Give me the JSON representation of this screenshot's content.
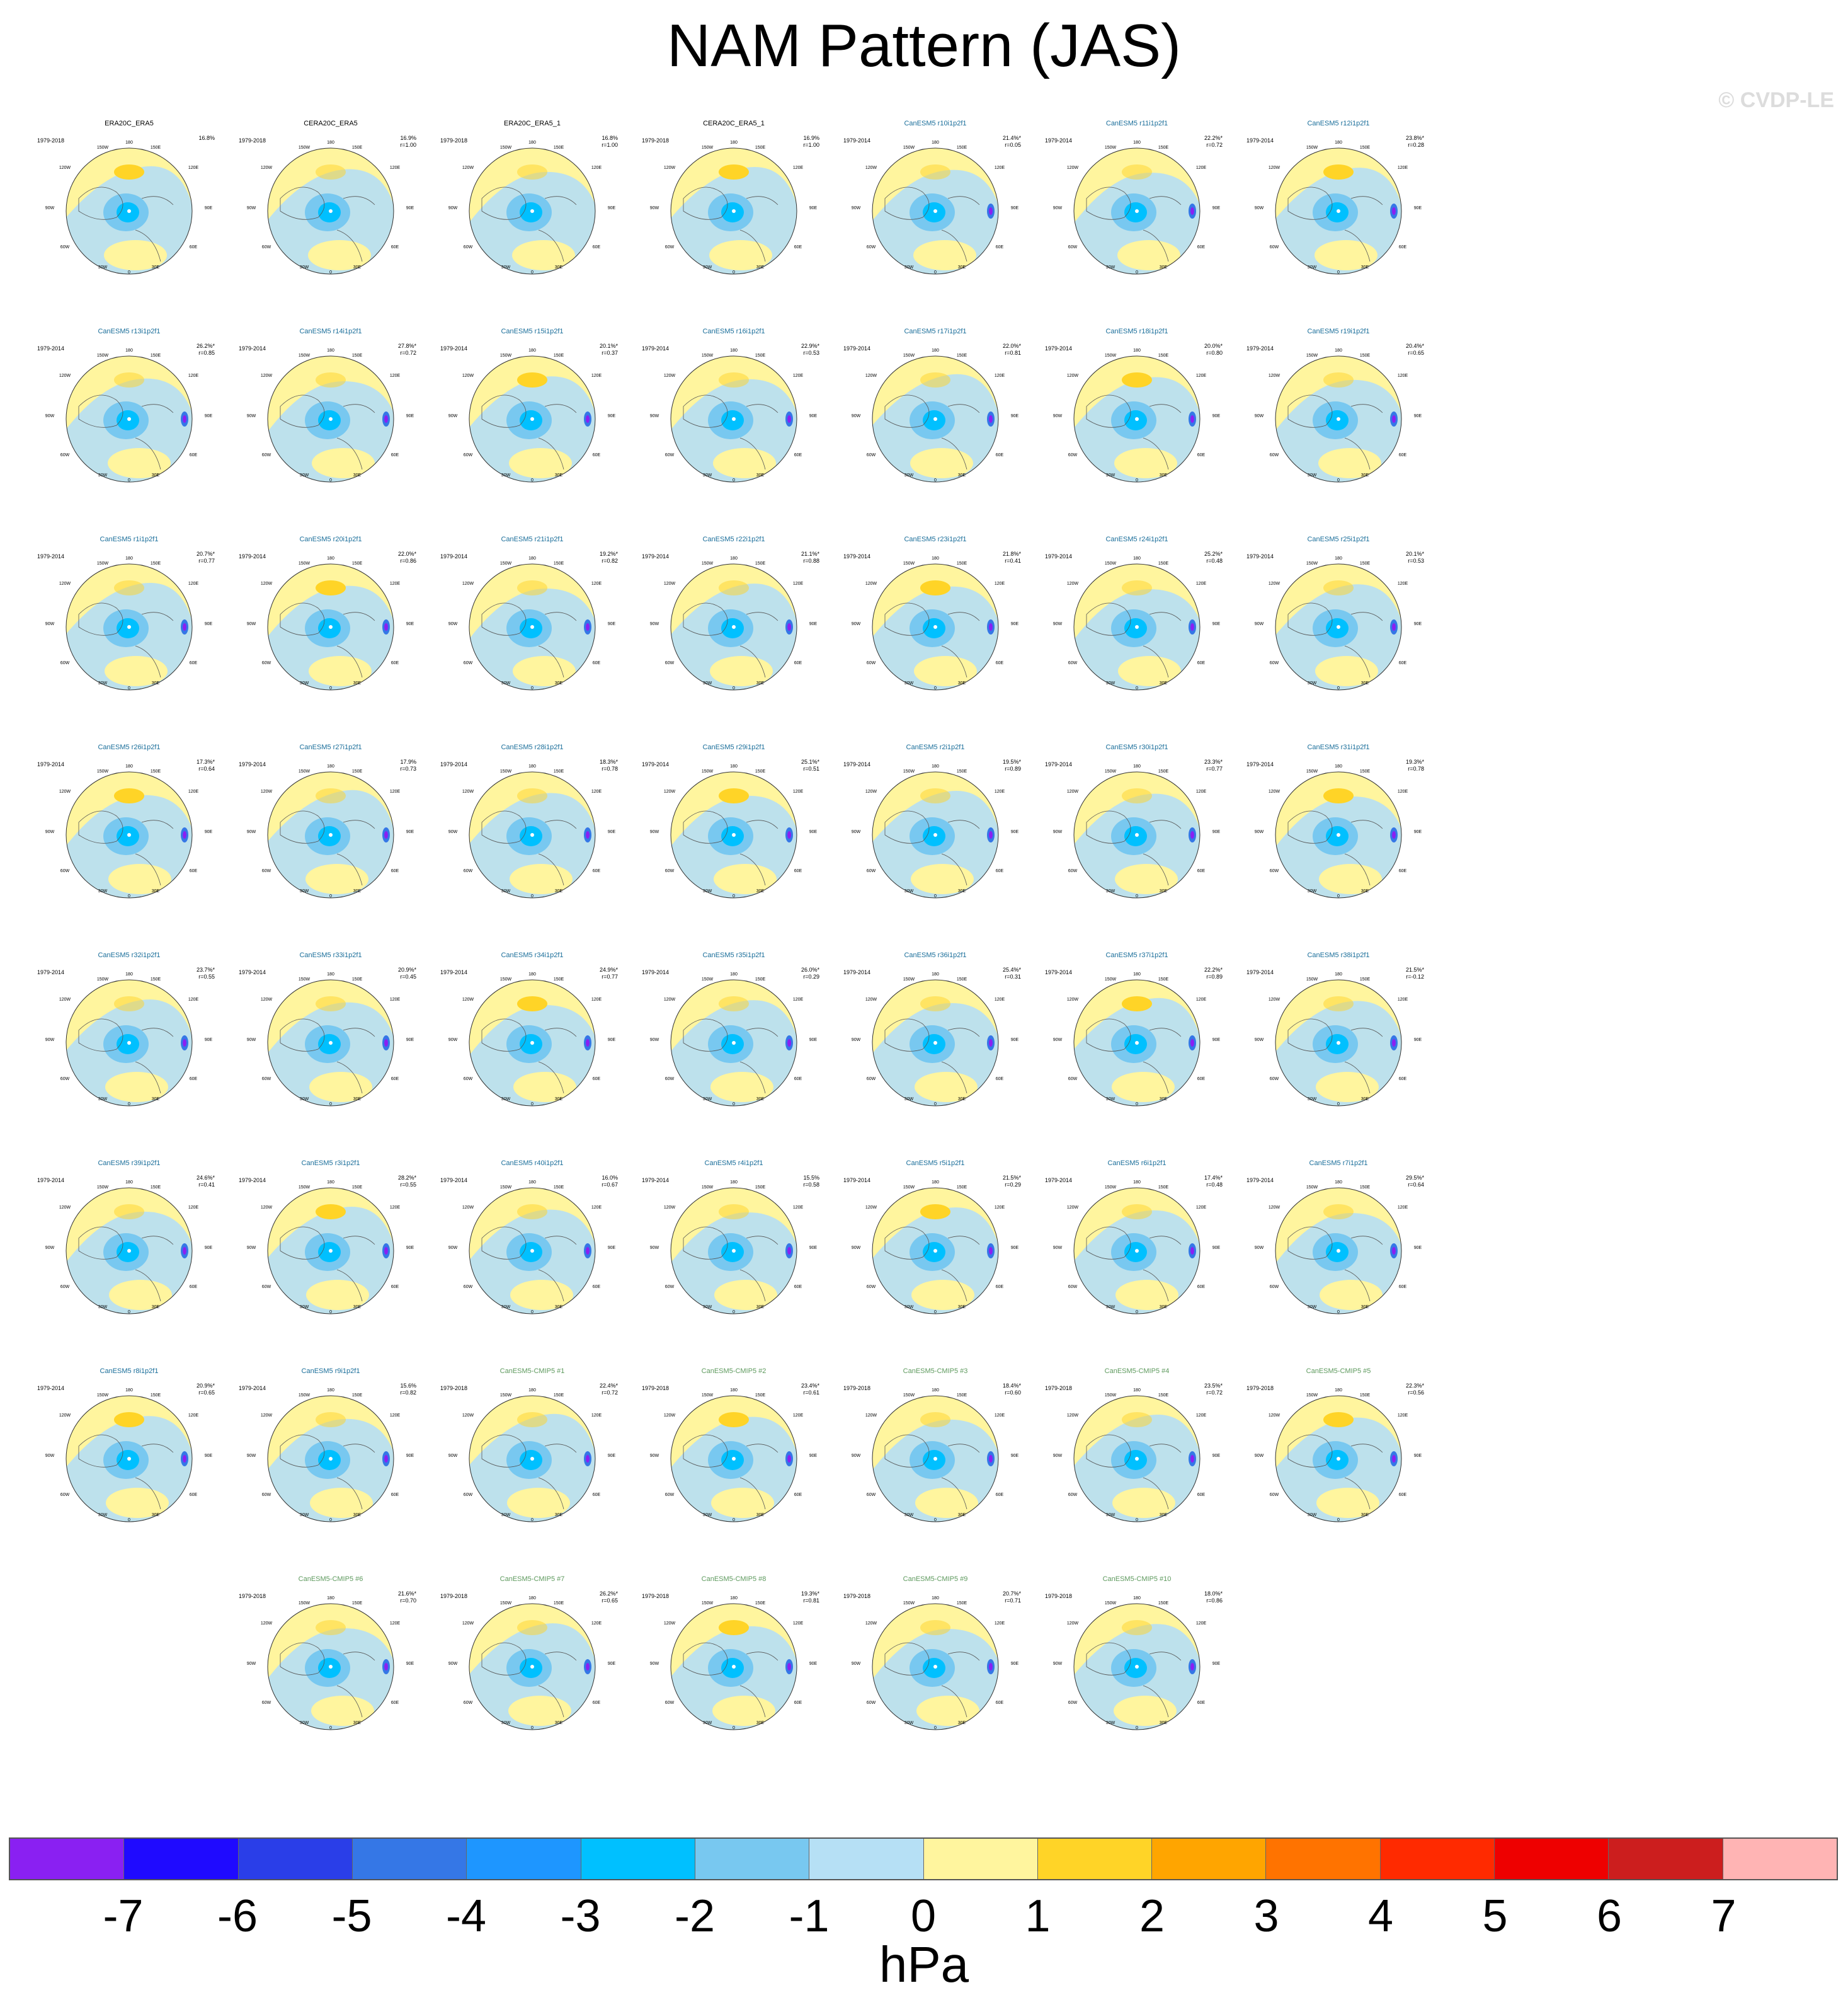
{
  "title": "NAM Pattern (JAS)",
  "watermark": "© CVDP-LE",
  "units": "hPa",
  "colors": {
    "obs_title": "#000000",
    "member_title": "#1a6e9a",
    "cmip5_title": "#5e9a5e",
    "pos": "#fff59e",
    "neg": "#b6dff4"
  },
  "colorbar": {
    "colors": [
      "#8a20f2",
      "#1f0aff",
      "#2a3ee8",
      "#3577e6",
      "#1e96ff",
      "#00c0ff",
      "#78c8f0",
      "#b6e0f5",
      "#fff59e",
      "#ffd427",
      "#ffa500",
      "#ff7300",
      "#ff2a00",
      "#ee0000",
      "#cc1e1e",
      "#ffb4b4"
    ],
    "ticks": [
      "-7",
      "-6",
      "-5",
      "-4",
      "-3",
      "-2",
      "-1",
      "0",
      "1",
      "2",
      "3",
      "4",
      "5",
      "6",
      "7"
    ]
  },
  "chart_data": {
    "type": "heatmap",
    "projection": "polar stereographic (Northern Hemisphere)",
    "lon_labels": [
      "180",
      "150W",
      "150E",
      "120W",
      "120E",
      "90W",
      "90E",
      "60W",
      "60E",
      "30W",
      "30E",
      "0"
    ],
    "panels": [
      {
        "title": "ERA20C_ERA5",
        "years": "1979-2018",
        "pct": "16.8%",
        "r": "",
        "kind": "obs"
      },
      {
        "title": "CERA20C_ERA5",
        "years": "1979-2018",
        "pct": "16.9%",
        "r": "r=1.00",
        "kind": "obs"
      },
      {
        "title": "ERA20C_ERA5_1",
        "years": "1979-2018",
        "pct": "16.8%",
        "r": "r=1.00",
        "kind": "obs"
      },
      {
        "title": "CERA20C_ERA5_1",
        "years": "1979-2018",
        "pct": "16.9%",
        "r": "r=1.00",
        "kind": "obs"
      },
      {
        "title": "CanESM5 r10i1p2f1",
        "years": "1979-2014",
        "pct": "21.4%*",
        "r": "r=0.05",
        "kind": "member"
      },
      {
        "title": "CanESM5 r11i1p2f1",
        "years": "1979-2014",
        "pct": "22.2%*",
        "r": "r=0.72",
        "kind": "member"
      },
      {
        "title": "CanESM5 r12i1p2f1",
        "years": "1979-2014",
        "pct": "23.8%*",
        "r": "r=0.28",
        "kind": "member"
      },
      {
        "title": "CanESM5 r13i1p2f1",
        "years": "1979-2014",
        "pct": "26.2%*",
        "r": "r=0.85",
        "kind": "member"
      },
      {
        "title": "CanESM5 r14i1p2f1",
        "years": "1979-2014",
        "pct": "27.8%*",
        "r": "r=0.72",
        "kind": "member"
      },
      {
        "title": "CanESM5 r15i1p2f1",
        "years": "1979-2014",
        "pct": "20.1%*",
        "r": "r=0.37",
        "kind": "member"
      },
      {
        "title": "CanESM5 r16i1p2f1",
        "years": "1979-2014",
        "pct": "22.9%*",
        "r": "r=0.53",
        "kind": "member"
      },
      {
        "title": "CanESM5 r17i1p2f1",
        "years": "1979-2014",
        "pct": "22.0%*",
        "r": "r=0.81",
        "kind": "member"
      },
      {
        "title": "CanESM5 r18i1p2f1",
        "years": "1979-2014",
        "pct": "20.0%*",
        "r": "r=0.80",
        "kind": "member"
      },
      {
        "title": "CanESM5 r19i1p2f1",
        "years": "1979-2014",
        "pct": "20.4%*",
        "r": "r=0.65",
        "kind": "member"
      },
      {
        "title": "CanESM5 r1i1p2f1",
        "years": "1979-2014",
        "pct": "20.7%*",
        "r": "r=0.77",
        "kind": "member"
      },
      {
        "title": "CanESM5 r20i1p2f1",
        "years": "1979-2014",
        "pct": "22.0%*",
        "r": "r=0.86",
        "kind": "member"
      },
      {
        "title": "CanESM5 r21i1p2f1",
        "years": "1979-2014",
        "pct": "19.2%*",
        "r": "r=0.82",
        "kind": "member"
      },
      {
        "title": "CanESM5 r22i1p2f1",
        "years": "1979-2014",
        "pct": "21.1%*",
        "r": "r=0.88",
        "kind": "member"
      },
      {
        "title": "CanESM5 r23i1p2f1",
        "years": "1979-2014",
        "pct": "21.8%*",
        "r": "r=0.41",
        "kind": "member"
      },
      {
        "title": "CanESM5 r24i1p2f1",
        "years": "1979-2014",
        "pct": "25.2%*",
        "r": "r=0.48",
        "kind": "member"
      },
      {
        "title": "CanESM5 r25i1p2f1",
        "years": "1979-2014",
        "pct": "20.1%*",
        "r": "r=0.53",
        "kind": "member"
      },
      {
        "title": "CanESM5 r26i1p2f1",
        "years": "1979-2014",
        "pct": "17.3%*",
        "r": "r=0.64",
        "kind": "member"
      },
      {
        "title": "CanESM5 r27i1p2f1",
        "years": "1979-2014",
        "pct": "17.9%",
        "r": "r=0.73",
        "kind": "member"
      },
      {
        "title": "CanESM5 r28i1p2f1",
        "years": "1979-2014",
        "pct": "18.3%*",
        "r": "r=0.78",
        "kind": "member"
      },
      {
        "title": "CanESM5 r29i1p2f1",
        "years": "1979-2014",
        "pct": "25.1%*",
        "r": "r=0.51",
        "kind": "member"
      },
      {
        "title": "CanESM5 r2i1p2f1",
        "years": "1979-2014",
        "pct": "19.5%*",
        "r": "r=0.89",
        "kind": "member"
      },
      {
        "title": "CanESM5 r30i1p2f1",
        "years": "1979-2014",
        "pct": "23.3%*",
        "r": "r=0.77",
        "kind": "member"
      },
      {
        "title": "CanESM5 r31i1p2f1",
        "years": "1979-2014",
        "pct": "19.3%*",
        "r": "r=0.78",
        "kind": "member"
      },
      {
        "title": "CanESM5 r32i1p2f1",
        "years": "1979-2014",
        "pct": "23.7%*",
        "r": "r=0.55",
        "kind": "member"
      },
      {
        "title": "CanESM5 r33i1p2f1",
        "years": "1979-2014",
        "pct": "20.9%*",
        "r": "r=0.45",
        "kind": "member"
      },
      {
        "title": "CanESM5 r34i1p2f1",
        "years": "1979-2014",
        "pct": "24.9%*",
        "r": "r=0.77",
        "kind": "member"
      },
      {
        "title": "CanESM5 r35i1p2f1",
        "years": "1979-2014",
        "pct": "26.0%*",
        "r": "r=0.29",
        "kind": "member"
      },
      {
        "title": "CanESM5 r36i1p2f1",
        "years": "1979-2014",
        "pct": "25.4%*",
        "r": "r=0.31",
        "kind": "member"
      },
      {
        "title": "CanESM5 r37i1p2f1",
        "years": "1979-2014",
        "pct": "22.2%*",
        "r": "r=0.89",
        "kind": "member"
      },
      {
        "title": "CanESM5 r38i1p2f1",
        "years": "1979-2014",
        "pct": "21.5%*",
        "r": "r=-0.12",
        "kind": "member"
      },
      {
        "title": "CanESM5 r39i1p2f1",
        "years": "1979-2014",
        "pct": "24.6%*",
        "r": "r=0.41",
        "kind": "member"
      },
      {
        "title": "CanESM5 r3i1p2f1",
        "years": "1979-2014",
        "pct": "28.2%*",
        "r": "r=0.55",
        "kind": "member"
      },
      {
        "title": "CanESM5 r40i1p2f1",
        "years": "1979-2014",
        "pct": "16.0%",
        "r": "r=0.67",
        "kind": "member"
      },
      {
        "title": "CanESM5 r4i1p2f1",
        "years": "1979-2014",
        "pct": "15.5%",
        "r": "r=0.58",
        "kind": "member"
      },
      {
        "title": "CanESM5 r5i1p2f1",
        "years": "1979-2014",
        "pct": "21.5%*",
        "r": "r=0.29",
        "kind": "member"
      },
      {
        "title": "CanESM5 r6i1p2f1",
        "years": "1979-2014",
        "pct": "17.4%*",
        "r": "r=0.48",
        "kind": "member"
      },
      {
        "title": "CanESM5 r7i1p2f1",
        "years": "1979-2014",
        "pct": "29.5%*",
        "r": "r=0.64",
        "kind": "member"
      },
      {
        "title": "CanESM5 r8i1p2f1",
        "years": "1979-2014",
        "pct": "20.9%*",
        "r": "r=0.65",
        "kind": "member"
      },
      {
        "title": "CanESM5 r9i1p2f1",
        "years": "1979-2014",
        "pct": "15.6%",
        "r": "r=0.82",
        "kind": "member"
      },
      {
        "title": "CanESM5-CMIP5 #1",
        "years": "1979-2018",
        "pct": "22.4%*",
        "r": "r=0.72",
        "kind": "cmip5"
      },
      {
        "title": "CanESM5-CMIP5 #2",
        "years": "1979-2018",
        "pct": "23.4%*",
        "r": "r=0.61",
        "kind": "cmip5"
      },
      {
        "title": "CanESM5-CMIP5 #3",
        "years": "1979-2018",
        "pct": "18.4%*",
        "r": "r=0.60",
        "kind": "cmip5"
      },
      {
        "title": "CanESM5-CMIP5 #4",
        "years": "1979-2018",
        "pct": "23.5%*",
        "r": "r=0.72",
        "kind": "cmip5"
      },
      {
        "title": "CanESM5-CMIP5 #5",
        "years": "1979-2018",
        "pct": "22.3%*",
        "r": "r=0.56",
        "kind": "cmip5"
      },
      {
        "title": "CanESM5-CMIP5 #6",
        "years": "1979-2018",
        "pct": "21.6%*",
        "r": "r=0.70",
        "kind": "cmip5"
      },
      {
        "title": "CanESM5-CMIP5 #7",
        "years": "1979-2018",
        "pct": "26.2%*",
        "r": "r=0.65",
        "kind": "cmip5"
      },
      {
        "title": "CanESM5-CMIP5 #8",
        "years": "1979-2018",
        "pct": "19.3%*",
        "r": "r=0.81",
        "kind": "cmip5"
      },
      {
        "title": "CanESM5-CMIP5 #9",
        "years": "1979-2018",
        "pct": "20.7%*",
        "r": "r=0.71",
        "kind": "cmip5"
      },
      {
        "title": "CanESM5-CMIP5 #10",
        "years": "1979-2018",
        "pct": "18.0%*",
        "r": "r=0.86",
        "kind": "cmip5"
      }
    ]
  }
}
